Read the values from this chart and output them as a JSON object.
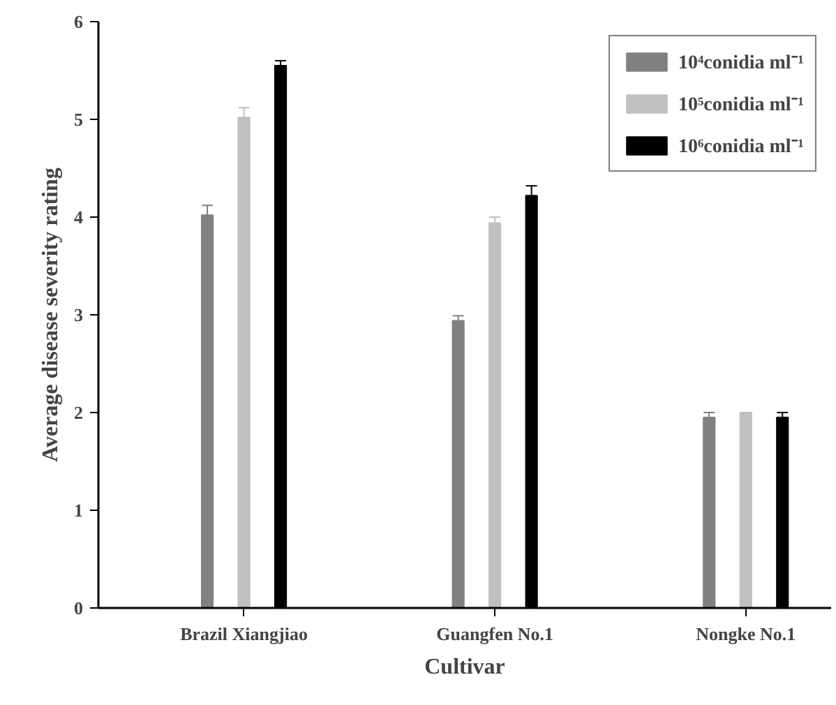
{
  "chart_data": {
    "type": "bar",
    "xlabel": "Cultivar",
    "ylabel": "Average disease severity rating",
    "categories": [
      "Brazil Xiangjiao",
      "Guangfen No.1",
      "Nongke No.1"
    ],
    "series": [
      {
        "name": "10⁴conidia ml⁻¹",
        "color": "#808080",
        "values": [
          4.02,
          2.94,
          1.95
        ],
        "errors": [
          0.1,
          0.05,
          0.05
        ]
      },
      {
        "name": "10⁵conidia ml⁻¹",
        "color": "#c0c0c0",
        "values": [
          5.02,
          3.94,
          2.0
        ],
        "errors": [
          0.1,
          0.06,
          0.0
        ]
      },
      {
        "name": "10⁶conidia ml⁻¹",
        "color": "#000000",
        "values": [
          5.55,
          4.22,
          1.95
        ],
        "errors": [
          0.05,
          0.1,
          0.05
        ]
      }
    ],
    "ylim": [
      0,
      6
    ],
    "yticks": [
      0,
      1,
      2,
      3,
      4,
      5,
      6
    ],
    "grid": false,
    "legend": "top right"
  }
}
